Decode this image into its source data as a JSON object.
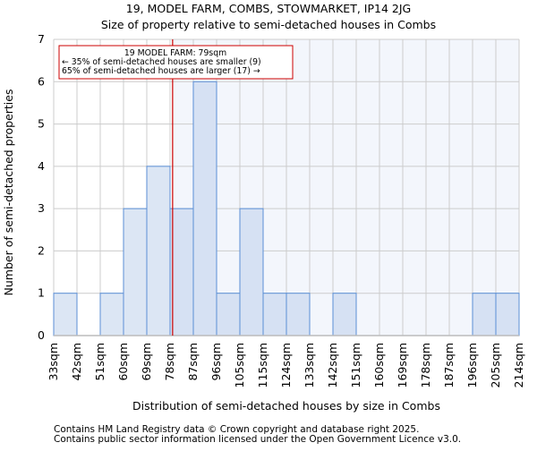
{
  "chart_data": {
    "type": "bar",
    "title": "19, MODEL FARM, COMBS, STOWMARKET, IP14 2JG",
    "subtitle": "Size of property relative to semi-detached houses in Combs",
    "xlabel": "Distribution of semi-detached houses by size in Combs",
    "ylabel": "Number of semi-detached properties",
    "bin_edges": [
      "33sqm",
      "42sqm",
      "51sqm",
      "60sqm",
      "69sqm",
      "78sqm",
      "87sqm",
      "96sqm",
      "105sqm",
      "115sqm",
      "124sqm",
      "133sqm",
      "142sqm",
      "151sqm",
      "160sqm",
      "169sqm",
      "178sqm",
      "187sqm",
      "196sqm",
      "205sqm",
      "214sqm"
    ],
    "values": [
      1,
      0,
      1,
      3,
      4,
      3,
      6,
      1,
      3,
      1,
      1,
      0,
      1,
      0,
      0,
      0,
      0,
      0,
      1,
      1
    ],
    "ylim": [
      0,
      7
    ],
    "yticks": [
      "0",
      "1",
      "2",
      "3",
      "4",
      "5",
      "6",
      "7"
    ],
    "grid": true,
    "marker": {
      "value_sqm": 79,
      "bin_position": 5.11
    },
    "annotation": {
      "line1": "19 MODEL FARM: 79sqm",
      "line2": "← 35% of semi-detached houses are smaller (9)",
      "line3": "65% of semi-detached houses are larger (17) →"
    },
    "colors": {
      "bar_left": "#dce6f4",
      "bar_right": "#d6e1f3",
      "bar_edge": "#5b8fd6",
      "marker": "#cc0000",
      "bg_right": "#f3f6fc",
      "grid": "#cccccc"
    }
  },
  "footer": {
    "line1": "Contains HM Land Registry data © Crown copyright and database right 2025.",
    "line2": "Contains public sector information licensed under the Open Government Licence v3.0."
  }
}
